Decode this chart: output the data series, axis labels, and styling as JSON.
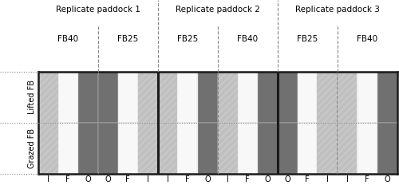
{
  "replicate_labels": [
    "Replicate paddock 1",
    "Replicate paddock 2",
    "Replicate paddock 3"
  ],
  "row_labels": [
    "Lifted FB",
    "Grazed FB"
  ],
  "paddock_structures": [
    {
      "fb_labels": [
        "FB40",
        "FB25"
      ],
      "columns": [
        {
          "label": "I",
          "color": "italian"
        },
        {
          "label": "F",
          "color": "fallow"
        },
        {
          "label": "O",
          "color": "oats"
        },
        {
          "label": "O",
          "color": "oats"
        },
        {
          "label": "F",
          "color": "fallow"
        },
        {
          "label": "I",
          "color": "italian"
        }
      ]
    },
    {
      "fb_labels": [
        "FB25",
        "FB40"
      ],
      "columns": [
        {
          "label": "I",
          "color": "italian"
        },
        {
          "label": "F",
          "color": "fallow"
        },
        {
          "label": "O",
          "color": "oats"
        },
        {
          "label": "I",
          "color": "italian"
        },
        {
          "label": "F",
          "color": "fallow"
        },
        {
          "label": "O",
          "color": "oats"
        }
      ]
    },
    {
      "fb_labels": [
        "FB25",
        "FB40"
      ],
      "columns": [
        {
          "label": "O",
          "color": "oats"
        },
        {
          "label": "F",
          "color": "fallow"
        },
        {
          "label": "I",
          "color": "italian"
        },
        {
          "label": "I",
          "color": "italian"
        },
        {
          "label": "F",
          "color": "fallow"
        },
        {
          "label": "O",
          "color": "oats"
        }
      ]
    }
  ],
  "oats_color": "#707070",
  "fallow_color": "#f8f8f8",
  "italian_color": "#c0c0c0",
  "italian_hatch": "////",
  "border_color": "#1a1a1a",
  "paddock_sep_color": "#1a1a1a",
  "fb_sep_color": "#888888",
  "dotted_line_color": "#888888",
  "background_color": "#ffffff",
  "fig_width": 5.0,
  "fig_height": 2.42
}
